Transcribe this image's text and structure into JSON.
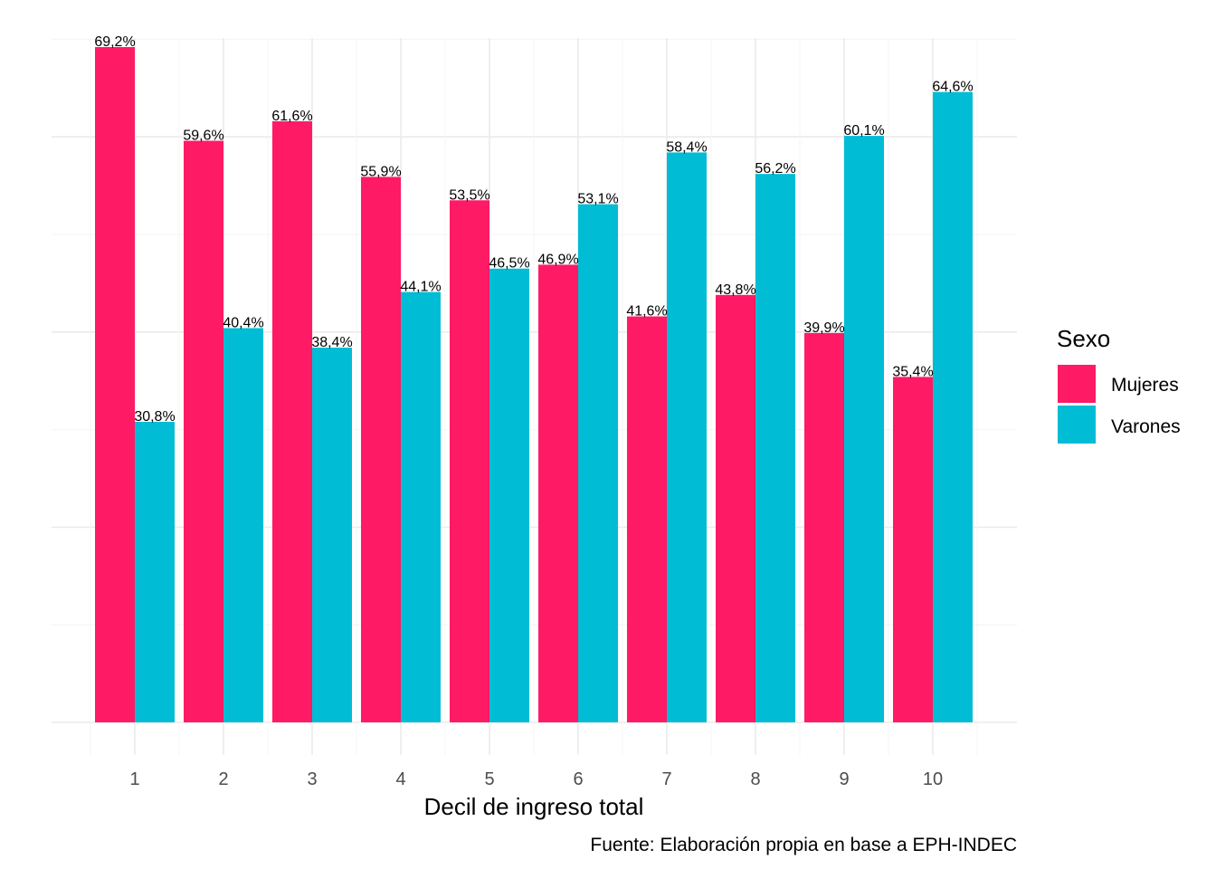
{
  "chart_data": {
    "type": "bar",
    "categories": [
      "1",
      "2",
      "3",
      "4",
      "5",
      "6",
      "7",
      "8",
      "9",
      "10"
    ],
    "series": [
      {
        "name": "Mujeres",
        "color": "#ff1a66",
        "values": [
          69.2,
          59.6,
          61.6,
          55.9,
          53.5,
          46.9,
          41.6,
          43.8,
          39.9,
          35.4
        ],
        "labels": [
          "69,2%",
          "59,6%",
          "61,6%",
          "55,9%",
          "53,5%",
          "46,9%",
          "41,6%",
          "43,8%",
          "39,9%",
          "35,4%"
        ]
      },
      {
        "name": "Varones",
        "color": "#00bcd4",
        "values": [
          30.8,
          40.4,
          38.4,
          44.1,
          46.5,
          53.1,
          58.4,
          56.2,
          60.1,
          64.6
        ],
        "labels": [
          "30,8%",
          "40,4%",
          "38,4%",
          "44,1%",
          "46,5%",
          "53,1%",
          "58,4%",
          "56,2%",
          "60,1%",
          "64,6%"
        ]
      }
    ],
    "xlabel": "Decil de ingreso total",
    "ylabel": "",
    "ylim": [
      0,
      70
    ],
    "grid": true,
    "y_tick_labels_shown": false,
    "legend": {
      "title": "Sexo",
      "position": "right"
    },
    "caption": "Fuente: Elaboración propia en base a EPH-INDEC"
  }
}
